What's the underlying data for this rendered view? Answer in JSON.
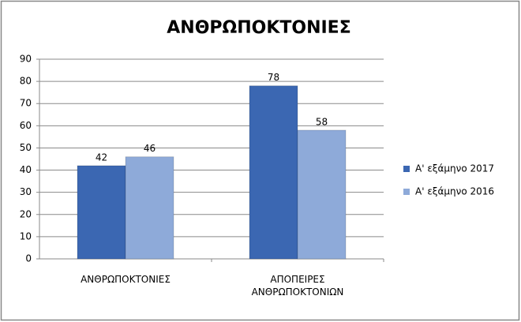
{
  "chart_data": {
    "type": "bar",
    "title": "ΑΝΘΡΩΠΟΚΤΟΝΙΕΣ",
    "categories": [
      "ΑΝΘΡΩΠΟΚΤΟΝΙΕΣ",
      "ΑΠΟΠΕΙΡΕΣ ΑΝΘΡΩΠΟΚΤΟΝΙΩΝ"
    ],
    "series": [
      {
        "name": "Α' εξάμηνο 2017",
        "color": "#3b67b2",
        "values": [
          42,
          78
        ]
      },
      {
        "name": "Α' εξάμηνο 2016",
        "color": "#8eaad9",
        "values": [
          46,
          58
        ]
      }
    ],
    "ylim": [
      0,
      90
    ],
    "yticks": [
      0,
      10,
      20,
      30,
      40,
      50,
      60,
      70,
      80,
      90
    ],
    "grid": true,
    "legend": "right"
  }
}
